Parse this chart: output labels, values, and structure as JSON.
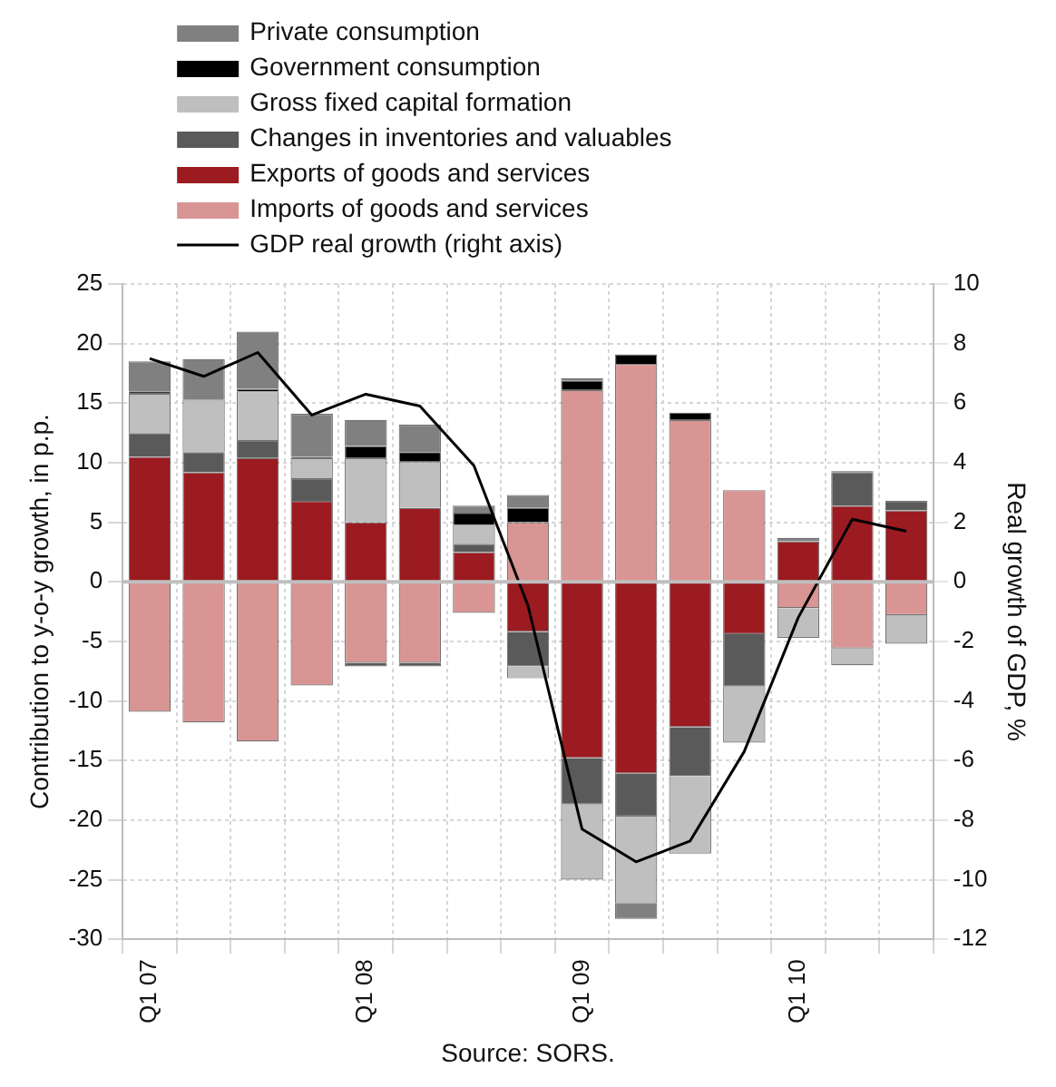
{
  "chart_data": {
    "type": "bar",
    "stacked": true,
    "categories": [
      "Q1 07",
      null,
      null,
      null,
      "Q1 08",
      null,
      null,
      null,
      "Q1 09",
      null,
      null,
      null,
      "Q1 10",
      null,
      null
    ],
    "series": [
      {
        "name": "Imports of goods and services",
        "color": "#d99594",
        "values": [
          -10.9,
          -11.8,
          -13.4,
          -8.7,
          -6.8,
          -6.8,
          -2.6,
          5.0,
          16.1,
          18.3,
          13.6,
          7.7,
          -2.2,
          -5.6,
          -2.8
        ]
      },
      {
        "name": "Exports of goods and services",
        "color": "#9b1b20",
        "values": [
          10.5,
          9.2,
          10.4,
          6.8,
          5.0,
          6.2,
          2.5,
          -4.2,
          -14.8,
          -16.1,
          -12.2,
          -4.4,
          3.4,
          6.4,
          6.0
        ]
      },
      {
        "name": "Changes in inventories and valuables",
        "color": "#5a5a5a",
        "values": [
          2.0,
          1.7,
          1.5,
          1.9,
          -0.3,
          -0.3,
          0.7,
          -2.9,
          -3.9,
          -3.6,
          -4.1,
          -4.4,
          null,
          2.8,
          0.8
        ]
      },
      {
        "name": "Gross fixed capital formation",
        "color": "#bfbfbf",
        "values": [
          3.3,
          4.4,
          4.1,
          1.7,
          5.4,
          3.9,
          1.6,
          -1.0,
          -6.3,
          -7.3,
          -6.5,
          -4.7,
          -2.5,
          -1.4,
          -2.4
        ]
      },
      {
        "name": "Government consumption",
        "color": "#000000",
        "values": [
          0.2,
          null,
          0.2,
          0.1,
          1.0,
          0.8,
          1.0,
          1.2,
          0.8,
          0.8,
          0.6,
          null,
          null,
          0.1,
          null
        ]
      },
      {
        "name": "Private consumption",
        "color": "#808080",
        "values": [
          2.5,
          3.4,
          4.8,
          3.6,
          2.2,
          2.3,
          0.6,
          1.1,
          0.2,
          -1.3,
          null,
          null,
          0.3,
          null,
          null
        ]
      },
      {
        "name": "GDP real growth (right axis)",
        "type": "line",
        "axis": "y2",
        "color": "#000000",
        "values": [
          7.5,
          6.9,
          7.7,
          5.6,
          6.3,
          5.9,
          3.9,
          -0.8,
          -8.3,
          -9.4,
          -8.7,
          -5.7,
          -1.2,
          2.1,
          1.7
        ]
      }
    ],
    "ylim": [
      -30,
      25
    ],
    "yticks": [
      -30,
      -25,
      -20,
      -15,
      -10,
      -5,
      0,
      5,
      10,
      15,
      20,
      25
    ],
    "y2lim": [
      -12,
      10
    ],
    "y2ticks": [
      -12,
      -10,
      -8,
      -6,
      -4,
      -2,
      0,
      2,
      4,
      6,
      8,
      10
    ],
    "ylabel": "Contribution to y-o-y growth, in p.p.",
    "y2label": "Real growth of GDP, %",
    "ref_lines": [
      {
        "axis": "y",
        "value": 0,
        "color": "#bfbfbf"
      }
    ],
    "grid": true,
    "legend": "top",
    "marker": "none",
    "line_style": "solid",
    "annotations": [
      "Source: SORS."
    ]
  }
}
